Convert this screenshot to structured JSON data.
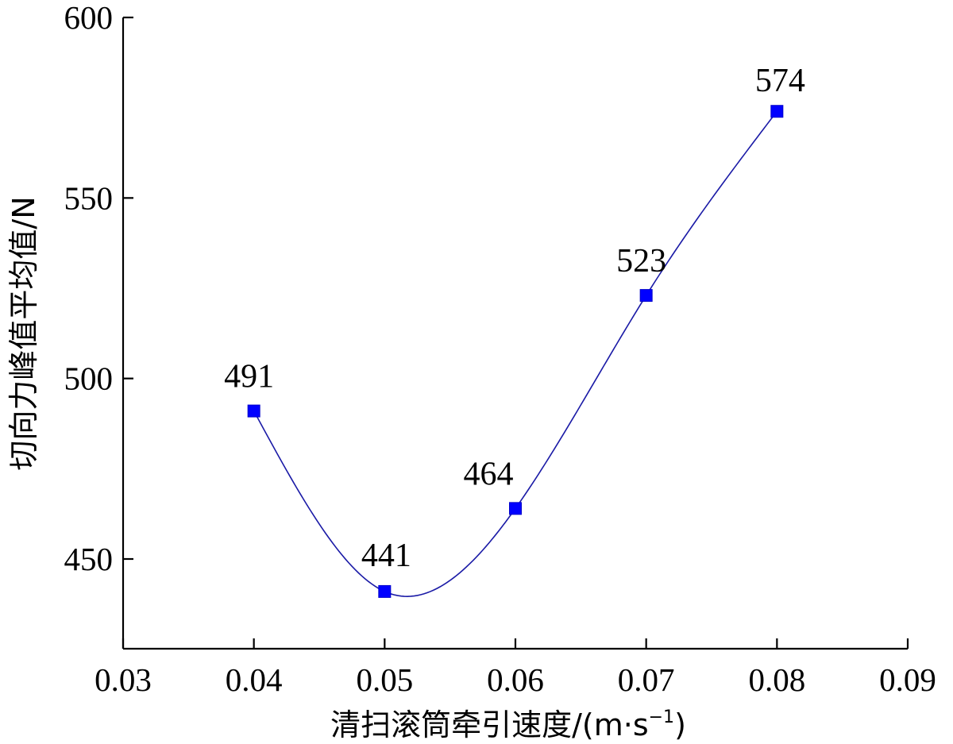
{
  "chart_data": {
    "type": "line",
    "x": [
      0.04,
      0.05,
      0.06,
      0.07,
      0.08
    ],
    "series": [
      {
        "values": [
          491,
          441,
          464,
          523,
          574
        ],
        "data_labels": [
          "491",
          "441",
          "464",
          "523",
          "574"
        ]
      }
    ],
    "xlabel": "清扫滚筒牵引速度/(m·s",
    "xlabel_sup": "−1",
    "xlabel_close": ")",
    "ylabel": "切向力峰值平均值/N",
    "xlim": [
      0.03,
      0.09
    ],
    "ylim": [
      425,
      600
    ],
    "x_ticks": [
      0.03,
      0.04,
      0.05,
      0.06,
      0.07,
      0.08,
      0.09
    ],
    "x_tick_labels": [
      "0.03",
      "0.04",
      "0.05",
      "0.06",
      "0.07",
      "0.08",
      "0.09"
    ],
    "y_ticks": [
      450,
      500,
      550,
      600
    ],
    "y_tick_labels": [
      "450",
      "500",
      "550",
      "600"
    ],
    "grid": false,
    "smooth": true,
    "marker": "square",
    "colors": {
      "line": "#1a1aa6",
      "marker": "#0000ff"
    }
  }
}
